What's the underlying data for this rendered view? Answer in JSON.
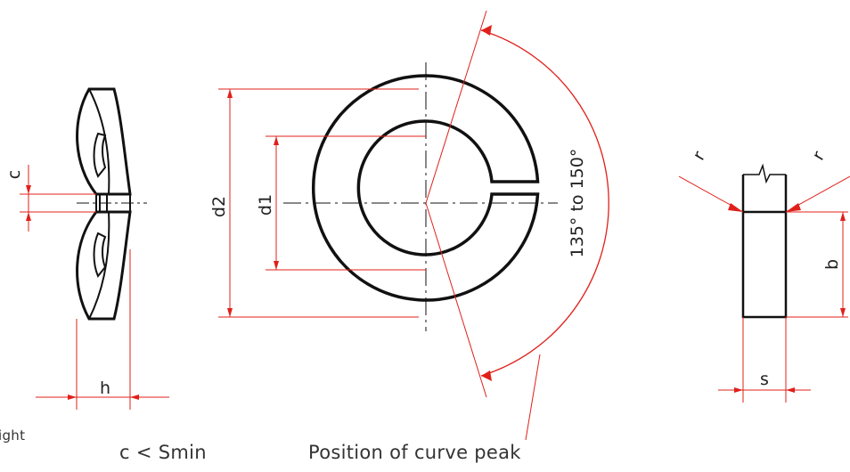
{
  "colors": {
    "outline": "#111111",
    "dimension": "#e0201a",
    "background": "#ffffff"
  },
  "side_view": {
    "label_c": "c",
    "label_h": "h"
  },
  "front_view": {
    "label_d1": "d1",
    "label_d2": "d2",
    "angle_label": "135° to 150°"
  },
  "section_view": {
    "label_r_left": "r",
    "label_r_right": "r",
    "label_b": "b",
    "label_s": "s"
  },
  "captions": {
    "left_partial": "ight",
    "middle": "c < Smin",
    "right": "Position of curve peak"
  }
}
